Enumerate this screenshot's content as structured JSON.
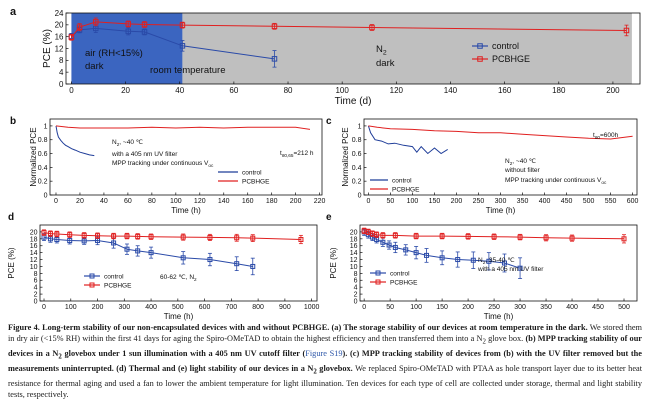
{
  "figure": {
    "panels": {
      "a": {
        "letter": "a",
        "region_labels": [
          "air (RH<15%)",
          "dark",
          "room temperature",
          "N",
          "2",
          "dark"
        ],
        "legend": [
          "control",
          "PCBHGE"
        ]
      },
      "b": {
        "letter": "b",
        "annotations": [
          "N",
          "2",
          ", ~40 ℃",
          "with a 405 nm UV filter",
          "MPP tracking under continuous V",
          "oc",
          "t",
          "80,65",
          "=212 h"
        ],
        "legend": [
          "control",
          "PCBHGE"
        ]
      },
      "c": {
        "letter": "c",
        "annotations": [
          "t",
          "80",
          "=600h",
          "N",
          "2",
          ", ~40 ℃",
          "without filter",
          "MPP tracking under continuous V",
          "oc"
        ],
        "legend": [
          "control",
          "PCBHGE"
        ]
      },
      "d": {
        "letter": "d",
        "annotations": [
          "60-62 ℃, N",
          "2"
        ],
        "legend": [
          "control",
          "PCBHGE"
        ]
      },
      "e": {
        "letter": "e",
        "annotations": [
          "N",
          "2",
          ", 35-40 ℃",
          "with a 405 nm UV filter"
        ],
        "legend": [
          "control",
          "PCBHGE"
        ]
      }
    }
  },
  "chart_data": [
    {
      "id": "a",
      "type": "line",
      "xlabel": "Time (d)",
      "ylabel": "PCE (%)",
      "xlim": [
        -2,
        210
      ],
      "ylim": [
        0,
        24
      ],
      "xticks": [
        0,
        20,
        40,
        60,
        80,
        100,
        120,
        140,
        160,
        180,
        200
      ],
      "yticks": [
        0,
        4,
        8,
        12,
        16,
        20,
        24
      ],
      "shaded_regions": [
        {
          "from": 0,
          "to": 41,
          "color": "#3b65c0"
        },
        {
          "from": 41,
          "to": 207,
          "color": "#bfbfbf"
        }
      ],
      "series": [
        {
          "name": "control",
          "color": "#2a4aa8",
          "x": [
            0,
            3,
            9,
            21,
            27,
            41,
            75
          ],
          "y": [
            16.1,
            18.3,
            18.8,
            17.8,
            17.6,
            12.9,
            8.5
          ],
          "err": [
            1.0,
            1.0,
            1.4,
            1.2,
            1.0,
            1.8,
            2.8
          ]
        },
        {
          "name": "PCBHGE",
          "color": "#e02020",
          "x": [
            0,
            3,
            9,
            21,
            27,
            41,
            75,
            111,
            205
          ],
          "y": [
            15.8,
            19.2,
            21.0,
            20.3,
            20.1,
            19.9,
            19.5,
            19.1,
            18.1
          ],
          "err": [
            1.0,
            1.2,
            1.3,
            1.0,
            1.0,
            1.0,
            1.0,
            1.0,
            1.8
          ]
        }
      ]
    },
    {
      "id": "b",
      "type": "line",
      "xlabel": "Time (h)",
      "ylabel": "Normalized PCE",
      "xlim": [
        -5,
        222
      ],
      "ylim": [
        0.0,
        1.1
      ],
      "xticks": [
        0,
        20,
        40,
        60,
        80,
        100,
        120,
        140,
        160,
        180,
        200,
        220
      ],
      "yticks": [
        0.0,
        0.2,
        0.4,
        0.6,
        0.8,
        1.0
      ],
      "series": [
        {
          "name": "control",
          "color": "#1f3d99",
          "x": [
            0,
            1,
            2,
            4,
            6,
            8,
            10,
            13,
            16,
            20,
            24,
            28,
            32
          ],
          "y": [
            1.0,
            0.9,
            0.84,
            0.79,
            0.75,
            0.72,
            0.7,
            0.67,
            0.65,
            0.62,
            0.6,
            0.58,
            0.57
          ]
        },
        {
          "name": "PCBHGE",
          "color": "#e02020",
          "x": [
            0,
            10,
            20,
            40,
            60,
            80,
            100,
            120,
            140,
            160,
            180,
            200,
            212
          ],
          "y": [
            1.0,
            0.98,
            0.97,
            0.97,
            0.97,
            0.98,
            0.97,
            0.98,
            0.97,
            0.98,
            0.98,
            0.98,
            0.95
          ]
        }
      ]
    },
    {
      "id": "c",
      "type": "line",
      "xlabel": "Time (h)",
      "ylabel": "Normalized PCE",
      "xlim": [
        -10,
        610
      ],
      "ylim": [
        0.0,
        1.1
      ],
      "xticks": [
        0,
        50,
        100,
        150,
        200,
        250,
        300,
        350,
        400,
        450,
        500,
        550,
        600
      ],
      "yticks": [
        0.0,
        0.2,
        0.4,
        0.6,
        0.8,
        1.0
      ],
      "series": [
        {
          "name": "control",
          "color": "#1f3d99",
          "x": [
            0,
            5,
            15,
            30,
            45,
            60,
            80,
            100,
            110,
            120,
            135,
            150,
            165,
            180
          ],
          "y": [
            1.0,
            0.9,
            0.8,
            0.78,
            0.74,
            0.75,
            0.72,
            0.7,
            0.62,
            0.7,
            0.6,
            0.68,
            0.6,
            0.66
          ]
        },
        {
          "name": "PCBHGE",
          "color": "#e02020",
          "x": [
            0,
            20,
            50,
            100,
            150,
            200,
            250,
            300,
            350,
            400,
            450,
            500,
            550,
            600
          ],
          "y": [
            1.0,
            0.98,
            0.96,
            0.95,
            0.93,
            0.92,
            0.9,
            0.9,
            0.88,
            0.86,
            0.84,
            0.82,
            0.81,
            0.85
          ]
        }
      ]
    },
    {
      "id": "d",
      "type": "line",
      "xlabel": "Time (h)",
      "ylabel": "PCE (%)",
      "xlim": [
        -15,
        1020
      ],
      "ylim": [
        0,
        22
      ],
      "xticks": [
        0,
        100,
        200,
        300,
        400,
        500,
        600,
        700,
        800,
        900,
        1000
      ],
      "yticks": [
        0,
        2,
        4,
        6,
        8,
        10,
        12,
        14,
        16,
        18,
        20
      ],
      "series": [
        {
          "name": "control",
          "color": "#2a4aa8",
          "x": [
            0,
            24,
            48,
            96,
            150,
            200,
            260,
            310,
            350,
            400,
            520,
            620,
            720,
            780
          ],
          "y": [
            18.5,
            18.0,
            17.8,
            17.5,
            17.4,
            17.5,
            16.8,
            15.0,
            14.5,
            14.0,
            12.5,
            12.0,
            10.8,
            10.0
          ],
          "err": [
            1.0,
            1.0,
            1.0,
            1.0,
            1.0,
            1.2,
            1.5,
            1.5,
            1.5,
            1.6,
            1.8,
            1.8,
            2.0,
            2.4
          ]
        },
        {
          "name": "PCBHGE",
          "color": "#e02020",
          "x": [
            0,
            24,
            48,
            96,
            150,
            200,
            260,
            310,
            350,
            400,
            520,
            620,
            720,
            780,
            960
          ],
          "y": [
            19.8,
            19.5,
            19.4,
            19.2,
            19.0,
            18.9,
            18.8,
            18.8,
            18.7,
            18.6,
            18.5,
            18.4,
            18.3,
            18.2,
            17.8
          ],
          "err": [
            0.8,
            0.8,
            0.8,
            0.8,
            0.8,
            0.8,
            0.8,
            0.8,
            0.8,
            0.8,
            0.9,
            0.9,
            1.0,
            1.0,
            1.2
          ]
        }
      ]
    },
    {
      "id": "e",
      "type": "line",
      "xlabel": "Time (h)",
      "ylabel": "PCE (%)",
      "xlim": [
        -8,
        525
      ],
      "ylim": [
        0,
        22
      ],
      "xticks": [
        0,
        50,
        100,
        150,
        200,
        250,
        300,
        350,
        400,
        450,
        500
      ],
      "yticks": [
        0,
        2,
        4,
        6,
        8,
        10,
        12,
        14,
        16,
        18,
        20
      ],
      "series": [
        {
          "name": "control",
          "color": "#2a4aa8",
          "x": [
            0,
            8,
            16,
            24,
            36,
            48,
            60,
            80,
            100,
            120,
            150,
            180,
            210,
            240,
            270,
            300
          ],
          "y": [
            20.0,
            19.2,
            18.5,
            17.8,
            17.0,
            16.2,
            15.5,
            14.8,
            14.0,
            13.2,
            12.5,
            12.0,
            11.8,
            11.5,
            11.0,
            9.5
          ],
          "err": [
            1.0,
            1.0,
            1.0,
            1.0,
            1.2,
            1.2,
            1.5,
            1.5,
            1.8,
            2.0,
            2.0,
            2.2,
            2.4,
            2.5,
            2.6,
            3.0
          ]
        },
        {
          "name": "PCBHGE",
          "color": "#e02020",
          "x": [
            0,
            8,
            16,
            24,
            36,
            60,
            100,
            150,
            200,
            250,
            300,
            350,
            400,
            500
          ],
          "y": [
            20.3,
            20.0,
            19.5,
            19.2,
            19.0,
            19.0,
            18.8,
            18.8,
            18.7,
            18.6,
            18.5,
            18.3,
            18.2,
            18.0
          ],
          "err": [
            0.8,
            0.8,
            0.8,
            0.8,
            0.8,
            0.8,
            0.8,
            0.8,
            0.8,
            0.8,
            0.8,
            0.9,
            0.9,
            1.2
          ]
        }
      ]
    }
  ],
  "caption": {
    "s1": "Figure 4. Long-term stability of our non-encapsulated devices with and without PCBHGE. (a) The storage stability of our devices at room temperature in the dark.",
    "s2": " We stored them in dry air (<15% RH) within the first 41 days for aging the Spiro-OMeTAD to obtain the highest efficiency and then transferred them into a N",
    "s2_sub": "2",
    "s3": " glove box. ",
    "s4": "(b) MPP tracking stability of our devices in a N",
    "s4_sub": "2",
    "s5": " glovebox under 1 sun illumination with a 405 nm UV cutoff filter (",
    "s5_link": "Figure S19",
    "s6": "). ",
    "s7": "(c) MPP tracking stability of devices from (b) with the UV filter removed but the measurements uninterrupted. (d) Thermal and (e) light stability of our devices in a N",
    "s7_sub": "2",
    "s8": " glovebox.",
    "s9": " We replaced Spiro-OMeTAD with PTAA as hole transport layer due to its better heat resistance for thermal aging and used a fan to lower the ambient temperature for light illumination. Ten devices for each type of cell are collected under storage, thermal and light stability tests, respectively."
  }
}
